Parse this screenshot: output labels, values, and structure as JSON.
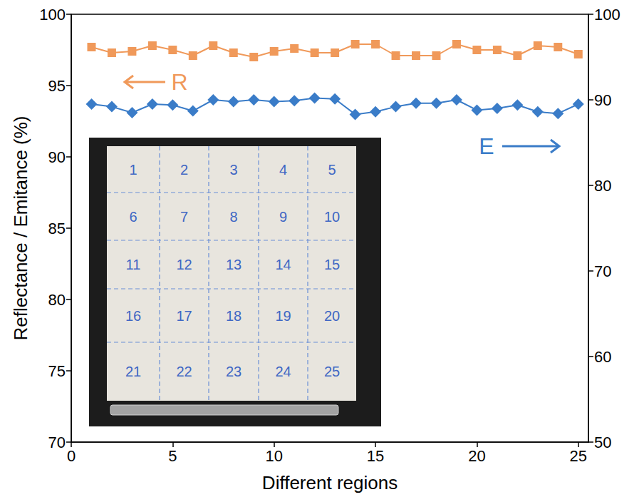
{
  "chart_data": {
    "type": "line",
    "x_label": "Different regions",
    "y_label": "Reflectance / Emitance (%)",
    "x": [
      1,
      2,
      3,
      4,
      5,
      6,
      7,
      8,
      9,
      10,
      11,
      12,
      13,
      14,
      15,
      16,
      17,
      18,
      19,
      20,
      21,
      22,
      23,
      24,
      25
    ],
    "series": [
      {
        "name": "R",
        "color": "#f0995a",
        "marker": "square",
        "values": [
          97.7,
          97.3,
          97.4,
          97.8,
          97.5,
          97.1,
          97.8,
          97.3,
          97.0,
          97.4,
          97.6,
          97.3,
          97.3,
          97.9,
          97.9,
          97.1,
          97.1,
          97.1,
          97.9,
          97.5,
          97.5,
          97.1,
          97.8,
          97.7,
          97.2
        ]
      },
      {
        "name": "E",
        "color": "#3a7cc8",
        "marker": "diamond",
        "axis": "y2",
        "values": [
          89.5,
          89.2,
          88.5,
          89.5,
          89.4,
          88.7,
          90.0,
          89.8,
          90.0,
          89.8,
          89.9,
          90.2,
          90.1,
          88.3,
          88.6,
          89.2,
          89.6,
          89.6,
          90.0,
          88.8,
          89.0,
          89.4,
          88.6,
          88.4,
          89.5
        ]
      }
    ],
    "xlim": [
      0,
      25.5
    ],
    "xticks": [
      0,
      5,
      10,
      15,
      20,
      25
    ],
    "ylim": [
      70,
      100
    ],
    "yticks": [
      70,
      75,
      80,
      85,
      90,
      95,
      100
    ],
    "y2lim": [
      50,
      100
    ],
    "y2ticks": [
      50,
      60,
      70,
      80,
      90,
      100
    ],
    "grid": false,
    "inset_labels": [
      1,
      2,
      3,
      4,
      5,
      6,
      7,
      8,
      9,
      10,
      11,
      12,
      13,
      14,
      15,
      16,
      17,
      18,
      19,
      20,
      21,
      22,
      23,
      24,
      25
    ]
  }
}
